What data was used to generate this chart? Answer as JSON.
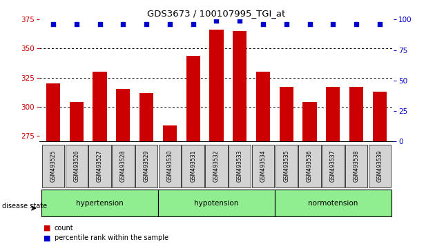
{
  "title": "GDS3673 / 100107995_TGI_at",
  "samples": [
    "GSM493525",
    "GSM493526",
    "GSM493527",
    "GSM493528",
    "GSM493529",
    "GSM493530",
    "GSM493531",
    "GSM493532",
    "GSM493533",
    "GSM493534",
    "GSM493535",
    "GSM493536",
    "GSM493537",
    "GSM493538",
    "GSM493539"
  ],
  "counts": [
    320,
    304,
    330,
    315,
    312,
    284,
    344,
    366,
    365,
    330,
    317,
    304,
    317,
    317,
    313
  ],
  "percentiles": [
    96,
    96,
    96,
    96,
    96,
    96,
    96,
    99,
    99,
    96,
    96,
    96,
    96,
    96,
    96
  ],
  "groups": [
    {
      "label": "hypertension",
      "start": 0,
      "end": 5
    },
    {
      "label": "hypotension",
      "start": 5,
      "end": 10
    },
    {
      "label": "normotension",
      "start": 10,
      "end": 15
    }
  ],
  "ylim_left": [
    270,
    375
  ],
  "ylim_right": [
    0,
    100
  ],
  "yticks_left": [
    275,
    300,
    325,
    350,
    375
  ],
  "yticks_right": [
    0,
    25,
    50,
    75,
    100
  ],
  "bar_color": "#cc0000",
  "dot_color": "#0000cc",
  "grid_color": "#000000",
  "bg_color": "#ffffff",
  "group_bg": "#90ee90",
  "tick_label_bg": "#d3d3d3",
  "left_axis_color": "#cc0000",
  "right_axis_color": "#0000cc",
  "legend_count_color": "#cc0000",
  "legend_pct_color": "#0000cc"
}
